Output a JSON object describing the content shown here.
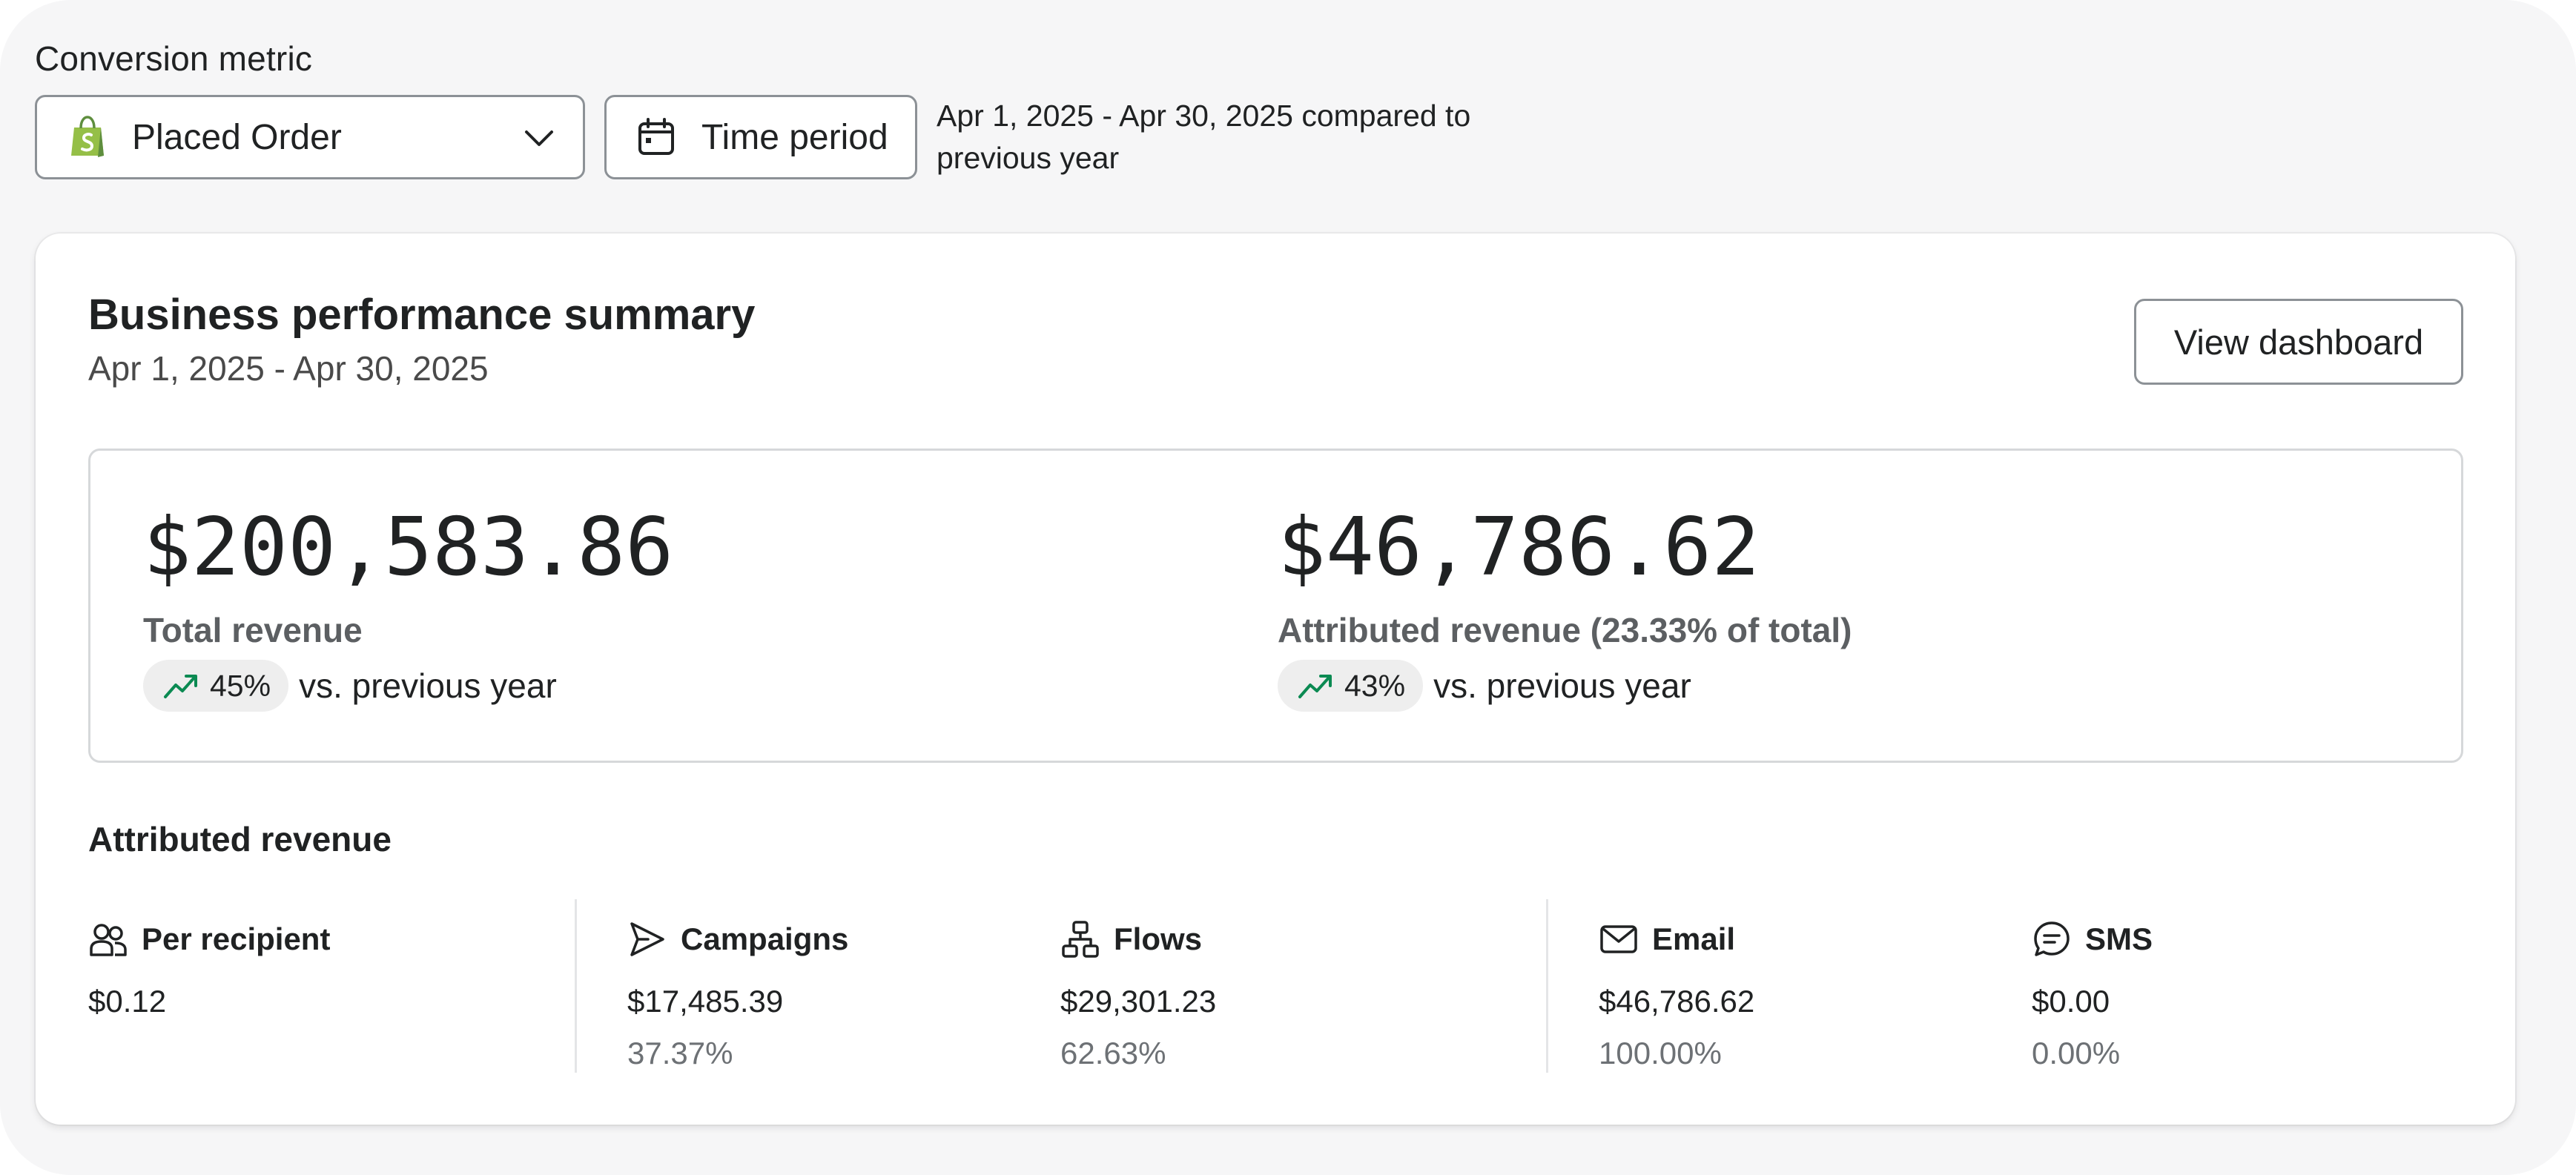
{
  "filters": {
    "metric_label": "Conversion metric",
    "metric_value": "Placed Order",
    "metric_icon": "shopify-bag-icon",
    "time_button_label": "Time period",
    "period_note": "Apr 1, 2025 - Apr 30, 2025 compared to previous year"
  },
  "summary": {
    "title": "Business performance summary",
    "date_range": "Apr 1, 2025 - Apr 30, 2025",
    "view_button": "View dashboard",
    "kpis": [
      {
        "value": "$200,583.86",
        "label": "Total revenue",
        "change": "45%",
        "change_suffix": "vs. previous year"
      },
      {
        "value": "$46,786.62",
        "label": "Attributed revenue (23.33% of total)",
        "change": "43%",
        "change_suffix": "vs. previous year"
      }
    ]
  },
  "attributed": {
    "title": "Attributed revenue",
    "columns": [
      {
        "label": "Per recipient",
        "icon": "users-icon",
        "value": "$0.12"
      },
      {
        "label": "Campaigns",
        "icon": "send-icon",
        "value": "$17,485.39",
        "pct": "37.37%"
      },
      {
        "label": "Flows",
        "icon": "flow-icon",
        "value": "$29,301.23",
        "pct": "62.63%"
      },
      {
        "label": "Email",
        "icon": "mail-icon",
        "value": "$46,786.62",
        "pct": "100.00%"
      },
      {
        "label": "SMS",
        "icon": "sms-icon",
        "value": "$0.00",
        "pct": "0.00%"
      }
    ]
  },
  "colors": {
    "trend_up": "#0b8a52",
    "shopify_green": "#95bf47",
    "background": "#f6f6f7"
  }
}
